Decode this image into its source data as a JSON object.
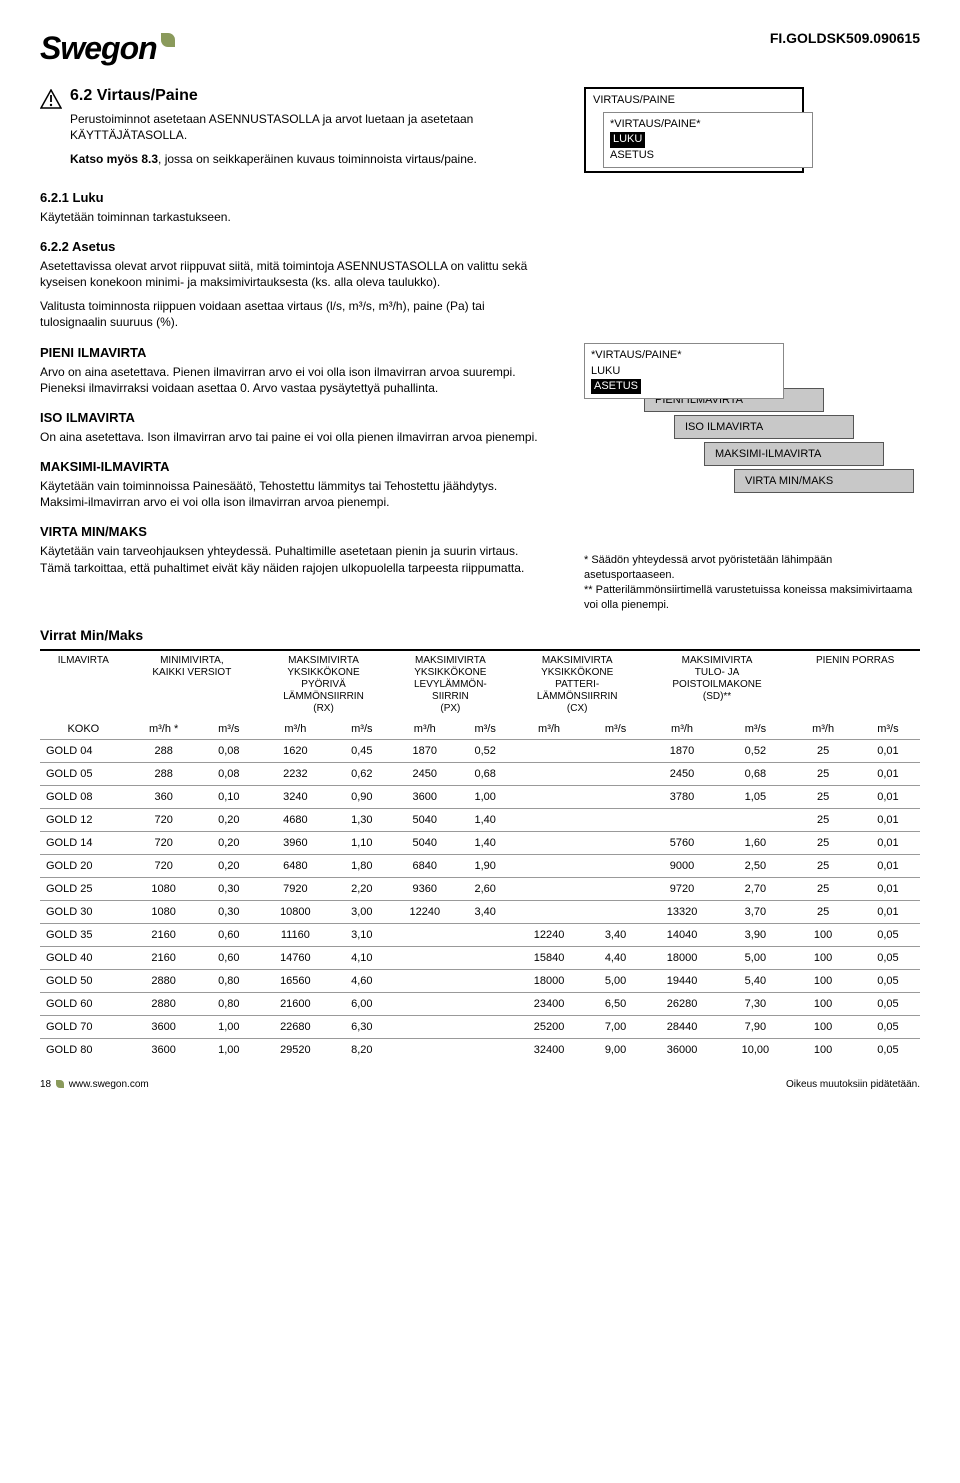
{
  "doc_id": "FI.GOLDSK509.090615",
  "logo_text": "Swegon",
  "s62": {
    "title": "6.2 Virtaus/Paine",
    "p1": "Perustoiminnot asetetaan ASENNUSTASOLLA ja arvot luetaan ja asetetaan KÄYTTÄJÄTASOLLA.",
    "p2a": "Katso myös 8.3, jossa on seikkaperäinen kuvaus toiminnoista virtaus/paine.",
    "p2_bold": "Katso myös 8.3"
  },
  "s621": {
    "title": "6.2.1 Luku",
    "p1": "Käytetään toiminnan tarkastukseen."
  },
  "s622": {
    "title": "6.2.2 Asetus",
    "p1": "Asetettavissa olevat arvot riippuvat siitä, mitä toimintoja ASENNUSTASOLLA on valittu sekä kyseisen konekoon minimi- ja maksimivirtauksesta (ks. alla oleva taulukko).",
    "p2": "Valitusta toiminnosta riippuen voidaan asettaa virtaus (l/s, m³/s, m³/h), paine (Pa) tai tulosignaalin suuruus (%)."
  },
  "pieni": {
    "title": "PIENI ILMAVIRTA",
    "p1": "Arvo on aina asetettava. Pienen ilmavirran arvo ei voi olla ison ilmavirran arvoa suurempi. Pieneksi ilmavirraksi voidaan asettaa 0. Arvo vastaa pysäytettyä puhallinta."
  },
  "iso": {
    "title": "ISO ILMAVIRTA",
    "p1": "On aina asetettava. Ison ilmavirran arvo tai paine ei voi olla pienen ilmavirran arvoa pienempi."
  },
  "maksimi": {
    "title": "MAKSIMI-ILMAVIRTA",
    "p1": "Käytetään vain toiminnoissa Painesäätö, Tehostettu lämmitys tai Tehostettu jäähdytys. Maksimi-ilmavirran arvo ei voi olla ison ilmavirran arvoa pienempi."
  },
  "minmaks": {
    "title": "VIRTA MIN/MAKS",
    "p1": "Käytetään vain tarveohjauksen yhteydessä. Puhaltimille asetetaan pienin ja suurin virtaus. Tämä tarkoittaa, että puhaltimet eivät käy näiden rajojen ulkopuolella tarpeesta riippumatta."
  },
  "menu1": {
    "outer": "VIRTAUS/PAINE",
    "l1": "*VIRTAUS/PAINE*",
    "l2": "LUKU",
    "l3": "ASETUS"
  },
  "menu2": {
    "l1": "*VIRTAUS/PAINE*",
    "l2": "LUKU",
    "l3": "ASETUS",
    "c1": "PIENI ILMAVIRTA",
    "c2": "ISO ILMAVIRTA",
    "c3": "MAKSIMI-ILMAVIRTA",
    "c4": "VIRTA MIN/MAKS"
  },
  "footnote": {
    "l1": "* Säädön yhteydessä arvot pyöristetään lähimpään asetusportaaseen.",
    "l2": "** Patterilämmönsiirtimellä varustetuissa koneissa maksimivirtaama voi olla pienempi."
  },
  "table": {
    "title": "Virrat Min/Maks",
    "headers": {
      "c1": "ILMAVIRTA",
      "c2": "MINIMIVIRTA,\nKAIKKI VERSIOT",
      "c3": "MAKSIMIVIRTA\nYKSIKKÖKONE\nPYÖRIVÄ\nLÄMMÖNSIIRRIN\n(RX)",
      "c4": "MAKSIMIVIRTA\nYKSIKKÖKONE\nLEVYLÄMMÖN-\nSIIRRIN\n(PX)",
      "c5": "MAKSIMIVIRTA\nYKSIKKÖKONE\nPATTERI-\nLÄMMÖNSIIRRIN\n(CX)",
      "c6": "MAKSIMIVIRTA\nTULO- JA\nPOISTOILMAKONE\n(SD)**",
      "c7": "PIENIN PORRAS"
    },
    "unitrow": {
      "koko": "KOKO",
      "m3h": "m³/h *",
      "m3s": "m³/s",
      "m3h_plain": "m³/h"
    },
    "rows": [
      {
        "label": "GOLD 04",
        "min_h": "288",
        "min_s": "0,08",
        "rx_h": "1620",
        "rx_s": "0,45",
        "px_h": "1870",
        "px_s": "0,52",
        "cx_h": "",
        "cx_s": "",
        "sd_h": "1870",
        "sd_s": "0,52",
        "pp_h": "25",
        "pp_s": "0,01"
      },
      {
        "label": "GOLD 05",
        "min_h": "288",
        "min_s": "0,08",
        "rx_h": "2232",
        "rx_s": "0,62",
        "px_h": "2450",
        "px_s": "0,68",
        "cx_h": "",
        "cx_s": "",
        "sd_h": "2450",
        "sd_s": "0,68",
        "pp_h": "25",
        "pp_s": "0,01"
      },
      {
        "label": "GOLD 08",
        "min_h": "360",
        "min_s": "0,10",
        "rx_h": "3240",
        "rx_s": "0,90",
        "px_h": "3600",
        "px_s": "1,00",
        "cx_h": "",
        "cx_s": "",
        "sd_h": "3780",
        "sd_s": "1,05",
        "pp_h": "25",
        "pp_s": "0,01"
      },
      {
        "label": "GOLD 12",
        "min_h": "720",
        "min_s": "0,20",
        "rx_h": "4680",
        "rx_s": "1,30",
        "px_h": "5040",
        "px_s": "1,40",
        "cx_h": "",
        "cx_s": "",
        "sd_h": "",
        "sd_s": "",
        "pp_h": "25",
        "pp_s": "0,01"
      },
      {
        "label": "GOLD 14",
        "min_h": "720",
        "min_s": "0,20",
        "rx_h": "3960",
        "rx_s": "1,10",
        "px_h": "5040",
        "px_s": "1,40",
        "cx_h": "",
        "cx_s": "",
        "sd_h": "5760",
        "sd_s": "1,60",
        "pp_h": "25",
        "pp_s": "0,01"
      },
      {
        "label": "GOLD 20",
        "min_h": "720",
        "min_s": "0,20",
        "rx_h": "6480",
        "rx_s": "1,80",
        "px_h": "6840",
        "px_s": "1,90",
        "cx_h": "",
        "cx_s": "",
        "sd_h": "9000",
        "sd_s": "2,50",
        "pp_h": "25",
        "pp_s": "0,01"
      },
      {
        "label": "GOLD 25",
        "min_h": "1080",
        "min_s": "0,30",
        "rx_h": "7920",
        "rx_s": "2,20",
        "px_h": "9360",
        "px_s": "2,60",
        "cx_h": "",
        "cx_s": "",
        "sd_h": "9720",
        "sd_s": "2,70",
        "pp_h": "25",
        "pp_s": "0,01"
      },
      {
        "label": "GOLD 30",
        "min_h": "1080",
        "min_s": "0,30",
        "rx_h": "10800",
        "rx_s": "3,00",
        "px_h": "12240",
        "px_s": "3,40",
        "cx_h": "",
        "cx_s": "",
        "sd_h": "13320",
        "sd_s": "3,70",
        "pp_h": "25",
        "pp_s": "0,01"
      },
      {
        "label": "GOLD 35",
        "min_h": "2160",
        "min_s": "0,60",
        "rx_h": "11160",
        "rx_s": "3,10",
        "px_h": "",
        "px_s": "",
        "cx_h": "12240",
        "cx_s": "3,40",
        "sd_h": "14040",
        "sd_s": "3,90",
        "pp_h": "100",
        "pp_s": "0,05"
      },
      {
        "label": "GOLD 40",
        "min_h": "2160",
        "min_s": "0,60",
        "rx_h": "14760",
        "rx_s": "4,10",
        "px_h": "",
        "px_s": "",
        "cx_h": "15840",
        "cx_s": "4,40",
        "sd_h": "18000",
        "sd_s": "5,00",
        "pp_h": "100",
        "pp_s": "0,05"
      },
      {
        "label": "GOLD 50",
        "min_h": "2880",
        "min_s": "0,80",
        "rx_h": "16560",
        "rx_s": "4,60",
        "px_h": "",
        "px_s": "",
        "cx_h": "18000",
        "cx_s": "5,00",
        "sd_h": "19440",
        "sd_s": "5,40",
        "pp_h": "100",
        "pp_s": "0,05"
      },
      {
        "label": "GOLD 60",
        "min_h": "2880",
        "min_s": "0,80",
        "rx_h": "21600",
        "rx_s": "6,00",
        "px_h": "",
        "px_s": "",
        "cx_h": "23400",
        "cx_s": "6,50",
        "sd_h": "26280",
        "sd_s": "7,30",
        "pp_h": "100",
        "pp_s": "0,05"
      },
      {
        "label": "GOLD 70",
        "min_h": "3600",
        "min_s": "1,00",
        "rx_h": "22680",
        "rx_s": "6,30",
        "px_h": "",
        "px_s": "",
        "cx_h": "25200",
        "cx_s": "7,00",
        "sd_h": "28440",
        "sd_s": "7,90",
        "pp_h": "100",
        "pp_s": "0,05"
      },
      {
        "label": "GOLD 80",
        "min_h": "3600",
        "min_s": "1,00",
        "rx_h": "29520",
        "rx_s": "8,20",
        "px_h": "",
        "px_s": "",
        "cx_h": "32400",
        "cx_s": "9,00",
        "sd_h": "36000",
        "sd_s": "10,00",
        "pp_h": "100",
        "pp_s": "0,05"
      }
    ]
  },
  "footer": {
    "page": "18",
    "url": "www.swegon.com",
    "right": "Oikeus muutoksiin pidätetään."
  }
}
